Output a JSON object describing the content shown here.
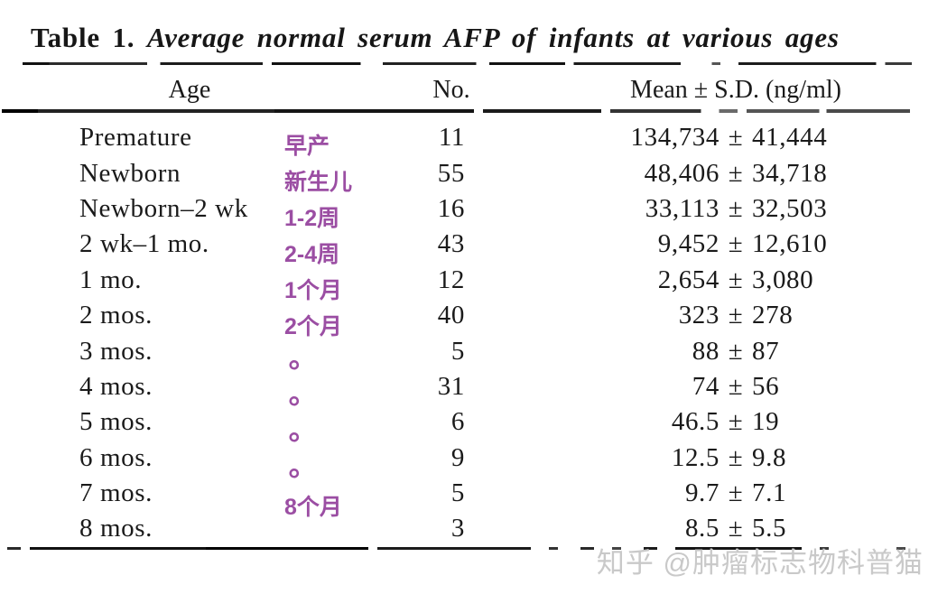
{
  "title": {
    "label": "Table 1.",
    "caption": "Average normal serum AFP of infants at various ages"
  },
  "table": {
    "headers": {
      "age": "Age",
      "no": "No.",
      "mean": "Mean ± S.D. (ng/ml)"
    },
    "plus_minus": "±",
    "rows": [
      {
        "age": "Premature",
        "no": "11",
        "mean": "134,734",
        "sd": "41,444"
      },
      {
        "age": "Newborn",
        "no": "55",
        "mean": "48,406",
        "sd": "34,718"
      },
      {
        "age": "Newborn–2 wk",
        "no": "16",
        "mean": "33,113",
        "sd": "32,503"
      },
      {
        "age": "2 wk–1 mo.",
        "no": "43",
        "mean": "9,452",
        "sd": "12,610"
      },
      {
        "age": "1 mo.",
        "no": "12",
        "mean": "2,654",
        "sd": "3,080"
      },
      {
        "age": "2 mos.",
        "no": "40",
        "mean": "323",
        "sd": "278"
      },
      {
        "age": "3 mos.",
        "no": "5",
        "mean": "88",
        "sd": "87"
      },
      {
        "age": "4 mos.",
        "no": "31",
        "mean": "74",
        "sd": "56"
      },
      {
        "age": "5 mos.",
        "no": "6",
        "mean": "46.5",
        "sd": "19"
      },
      {
        "age": "6 mos.",
        "no": "9",
        "mean": "12.5",
        "sd": "9.8"
      },
      {
        "age": "7 mos.",
        "no": "5",
        "mean": "9.7",
        "sd": "7.1"
      },
      {
        "age": "8 mos.",
        "no": "3",
        "mean": "8.5",
        "sd": "5.5"
      }
    ]
  },
  "annotations": {
    "color": "#9b4ea3",
    "items": [
      {
        "text": "早产"
      },
      {
        "text": "新生儿"
      },
      {
        "text": "1-2周"
      },
      {
        "text": "2-4周"
      },
      {
        "text": "1个月"
      },
      {
        "text": "2个月"
      },
      {
        "text": "°"
      },
      {
        "text": "°"
      },
      {
        "text": "°"
      },
      {
        "text": "°"
      },
      {
        "text": "8个月"
      }
    ]
  },
  "watermark": {
    "text": "知乎 @肿瘤标志物科普猫"
  }
}
